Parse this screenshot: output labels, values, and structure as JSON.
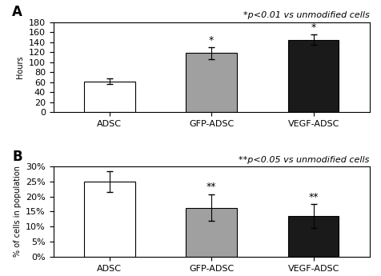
{
  "chart_data": [
    {
      "type": "bar",
      "panel_label": "A",
      "annotation": "*p<0.01 vs unmodified cells",
      "categories": [
        "ADSC",
        "GFP-ADSC",
        "VEGF-ADSC"
      ],
      "values": [
        62,
        118,
        145
      ],
      "errors": [
        6,
        12,
        10
      ],
      "colors": [
        "#ffffff",
        "#a0a0a0",
        "#1a1a1a"
      ],
      "significance": [
        null,
        "*",
        "*"
      ],
      "ylabel": "Hours",
      "ylim": [
        0,
        180
      ],
      "yticks": [
        0,
        20,
        40,
        60,
        80,
        100,
        120,
        140,
        160,
        180
      ]
    },
    {
      "type": "bar",
      "panel_label": "B",
      "annotation": "**p<0.05 vs unmodified cells",
      "categories": [
        "ADSC",
        "GFP-ADSC",
        "VEGF-ADSC"
      ],
      "values": [
        0.25,
        0.163,
        0.135
      ],
      "errors": [
        0.035,
        0.045,
        0.04
      ],
      "colors": [
        "#ffffff",
        "#a0a0a0",
        "#1a1a1a"
      ],
      "significance": [
        null,
        "**",
        "**"
      ],
      "ylabel": "% of cells in population",
      "ylim": [
        0,
        0.3
      ],
      "yticks": [
        {
          "value": 0,
          "label": "0%"
        },
        {
          "value": 0.05,
          "label": "5%"
        },
        {
          "value": 0.1,
          "label": "10%"
        },
        {
          "value": 0.15,
          "label": "15%"
        },
        {
          "value": 0.2,
          "label": "20%"
        },
        {
          "value": 0.25,
          "label": "25%"
        },
        {
          "value": 0.3,
          "label": "30%"
        }
      ]
    }
  ]
}
